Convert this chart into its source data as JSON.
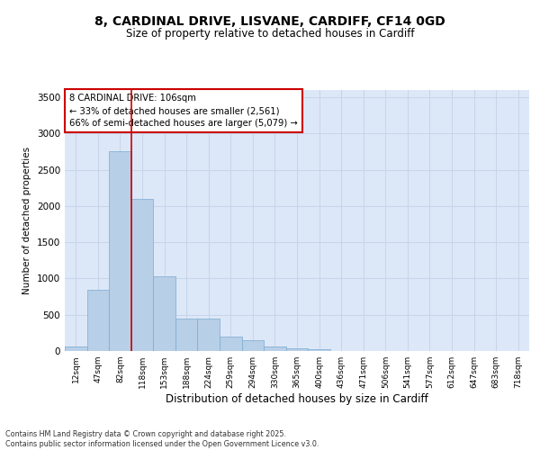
{
  "title_line1": "8, CARDINAL DRIVE, LISVANE, CARDIFF, CF14 0GD",
  "title_line2": "Size of property relative to detached houses in Cardiff",
  "xlabel": "Distribution of detached houses by size in Cardiff",
  "ylabel": "Number of detached properties",
  "bins": [
    "12sqm",
    "47sqm",
    "82sqm",
    "118sqm",
    "153sqm",
    "188sqm",
    "224sqm",
    "259sqm",
    "294sqm",
    "330sqm",
    "365sqm",
    "400sqm",
    "436sqm",
    "471sqm",
    "506sqm",
    "541sqm",
    "577sqm",
    "612sqm",
    "647sqm",
    "683sqm",
    "718sqm"
  ],
  "values": [
    60,
    850,
    2760,
    2100,
    1025,
    450,
    450,
    200,
    145,
    60,
    40,
    25,
    5,
    3,
    2,
    1,
    0,
    0,
    0,
    0,
    0
  ],
  "bar_color": "#b8cfe8",
  "bar_edge_color": "#7aaad0",
  "red_line_x": 2.5,
  "annotation_title": "8 CARDINAL DRIVE: 106sqm",
  "annotation_line1": "← 33% of detached houses are smaller (2,561)",
  "annotation_line2": "66% of semi-detached houses are larger (5,079) →",
  "ylim": [
    0,
    3600
  ],
  "yticks": [
    0,
    500,
    1000,
    1500,
    2000,
    2500,
    3000,
    3500
  ],
  "grid_color": "#c8d4e8",
  "bg_color": "#dce8f8",
  "footnote1": "Contains HM Land Registry data © Crown copyright and database right 2025.",
  "footnote2": "Contains public sector information licensed under the Open Government Licence v3.0."
}
